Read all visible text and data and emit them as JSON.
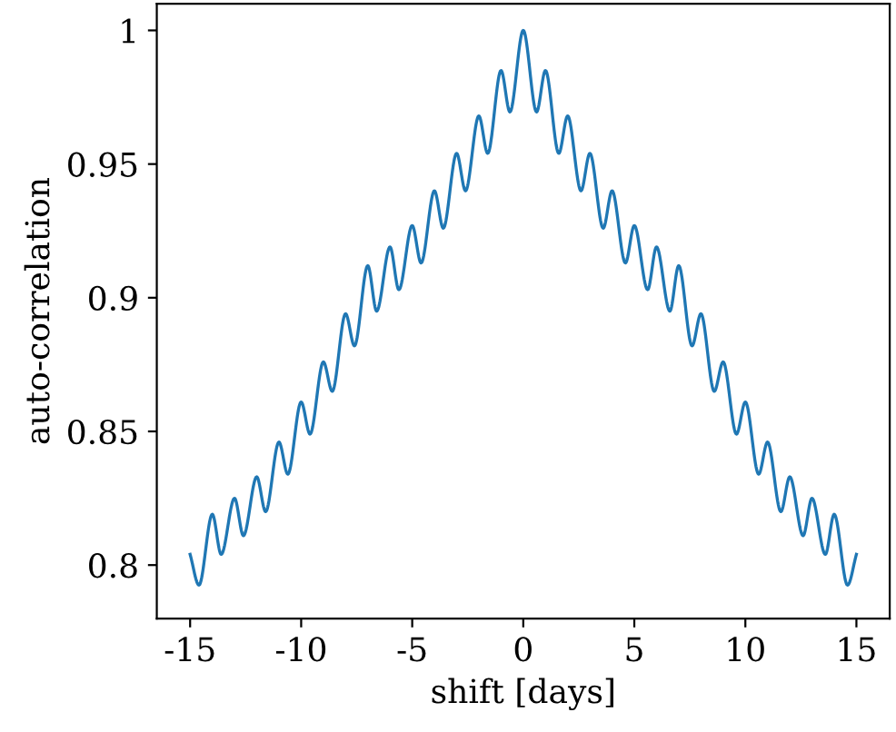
{
  "chart_data": {
    "type": "line",
    "xlabel": "shift [days]",
    "ylabel": "auto-correlation",
    "x": [
      -15,
      -14.6,
      -14,
      -13.6,
      -13,
      -12.6,
      -12,
      -11.6,
      -11,
      -10.6,
      -10,
      -9.6,
      -9,
      -8.6,
      -8,
      -7.6,
      -7,
      -6.6,
      -6,
      -5.6,
      -5,
      -4.6,
      -4,
      -3.6,
      -3,
      -2.6,
      -2,
      -1.6,
      -1,
      -0.6,
      0,
      0.6,
      1,
      1.6,
      2,
      2.6,
      3,
      3.6,
      4,
      4.6,
      5,
      5.6,
      6,
      6.6,
      7,
      7.6,
      8,
      8.6,
      9,
      9.6,
      10,
      10.6,
      11,
      11.6,
      12,
      12.6,
      13,
      13.6,
      14,
      14.6,
      15
    ],
    "series": [
      {
        "color": "#1f77b4",
        "values": [
          0.804,
          0.7925,
          0.819,
          0.804,
          0.825,
          0.811,
          0.833,
          0.82,
          0.846,
          0.834,
          0.861,
          0.849,
          0.876,
          0.865,
          0.894,
          0.882,
          0.912,
          0.895,
          0.919,
          0.903,
          0.927,
          0.913,
          0.94,
          0.926,
          0.954,
          0.94,
          0.968,
          0.954,
          0.985,
          0.9695,
          1.0,
          0.9695,
          0.985,
          0.954,
          0.968,
          0.94,
          0.954,
          0.926,
          0.94,
          0.913,
          0.927,
          0.903,
          0.919,
          0.895,
          0.912,
          0.882,
          0.894,
          0.865,
          0.876,
          0.849,
          0.861,
          0.834,
          0.846,
          0.82,
          0.833,
          0.811,
          0.825,
          0.804,
          0.819,
          0.7925,
          0.804
        ]
      }
    ],
    "xlim": [
      -16.5,
      16.5
    ],
    "ylim": [
      0.78,
      1.01
    ],
    "xticks": [
      -15,
      -10,
      -5,
      0,
      5,
      10,
      15
    ],
    "yticks": [
      {
        "value": 0.8,
        "label": "0.8"
      },
      {
        "value": 0.85,
        "label": "0.85"
      },
      {
        "value": 0.9,
        "label": "0.9"
      },
      {
        "value": 0.95,
        "label": "0.95"
      },
      {
        "value": 1,
        "label": "1"
      }
    ],
    "grid": false,
    "legend": false,
    "marker": "none",
    "line_style": "solid"
  }
}
